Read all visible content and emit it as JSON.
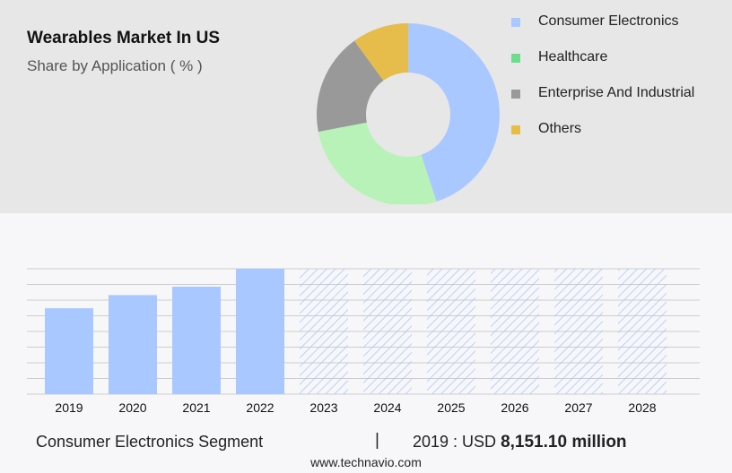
{
  "colors": {
    "consumer_electronics": "#a8c8ff",
    "healthcare": "#b8f2b8",
    "enterprise_and_industrial": "#999999",
    "others": "#e6bc4a",
    "legend_healthcare": "#6edc8c",
    "forecast_hatch": "#a8c8ff",
    "gridline": "#cccccc"
  },
  "header": {
    "title": "Wearables Market In US",
    "subtitle": "Share by Application ( % )"
  },
  "chart_data": [
    {
      "type": "pie",
      "variant": "donut",
      "title": "Wearables Market In US",
      "subtitle": "Share by Application ( % )",
      "labels": [
        "Consumer Electronics",
        "Healthcare",
        "Enterprise And Industrial",
        "Others"
      ],
      "values": [
        45,
        27,
        18,
        10
      ],
      "legend_placement": "right"
    },
    {
      "type": "bar",
      "categories": [
        "2019",
        "2020",
        "2021",
        "2022",
        "2023",
        "2024",
        "2025",
        "2026",
        "2027",
        "2028"
      ],
      "values": [
        8151.1,
        9400,
        10200,
        11900,
        11900,
        11900,
        11900,
        11900,
        11900,
        11900
      ],
      "forecast_from": "2023",
      "forecast_style": "hatched",
      "ylim": [
        0,
        11900
      ],
      "grid": true,
      "xlabel": "",
      "ylabel": ""
    }
  ],
  "footer": {
    "segment": "Consumer Electronics Segment",
    "separator": "|",
    "value_prefix": "2019 : USD",
    "value_bold": "8,151.10 million"
  },
  "source": "www.technavio.com"
}
